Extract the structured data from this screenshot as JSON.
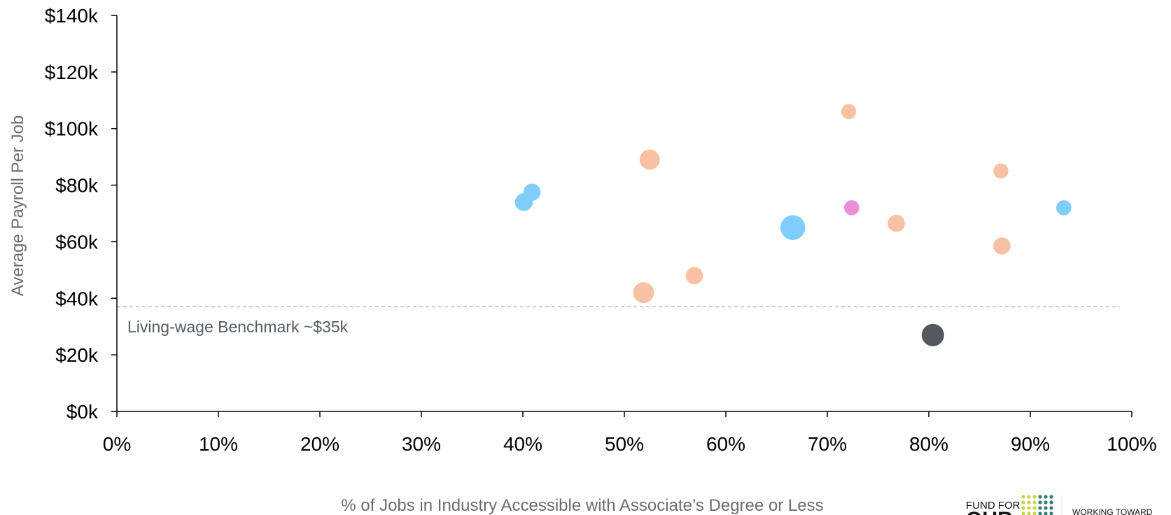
{
  "chart_data": {
    "type": "scatter",
    "subtype": "bubble",
    "xlabel": "% of Jobs in Industry Accessible with Associate’s Degree or Less",
    "ylabel": "Average Payroll Per Job",
    "xlim": [
      0,
      100
    ],
    "ylim": [
      0,
      140
    ],
    "x_ticks": [
      "0%",
      "10%",
      "20%",
      "30%",
      "40%",
      "50%",
      "60%",
      "70%",
      "80%",
      "90%",
      "100%"
    ],
    "y_ticks": [
      "$0k",
      "$20k",
      "$40k",
      "$60k",
      "$80k",
      "$100k",
      "$120k",
      "$140k"
    ],
    "grid": false,
    "benchmark": {
      "value": 37,
      "label": "Living-wage Benchmark ~$35k",
      "color": "#bbbbbb"
    },
    "points": [
      {
        "x": 40.1,
        "y": 74,
        "size": 1.4,
        "color": "#7fcdfb"
      },
      {
        "x": 40.9,
        "y": 77.5,
        "size": 1.3,
        "color": "#7fcdfb"
      },
      {
        "x": 52.5,
        "y": 89,
        "size": 1.8,
        "color": "#f8c1a4"
      },
      {
        "x": 51.9,
        "y": 42,
        "size": 1.9,
        "color": "#f8c1a4"
      },
      {
        "x": 56.9,
        "y": 48,
        "size": 1.3,
        "color": "#f8c1a4"
      },
      {
        "x": 66.6,
        "y": 65,
        "size": 2.7,
        "color": "#7fcdfb"
      },
      {
        "x": 72.1,
        "y": 106,
        "size": 1.0,
        "color": "#f8c1a4"
      },
      {
        "x": 72.4,
        "y": 72,
        "size": 1.0,
        "color": "#e98fd6"
      },
      {
        "x": 76.8,
        "y": 66.5,
        "size": 1.3,
        "color": "#f8c1a4"
      },
      {
        "x": 80.4,
        "y": 27,
        "size": 2.2,
        "color": "#55585c"
      },
      {
        "x": 87.1,
        "y": 85,
        "size": 1.0,
        "color": "#f8c1a4"
      },
      {
        "x": 87.2,
        "y": 58.5,
        "size": 1.3,
        "color": "#f8c1a4"
      },
      {
        "x": 93.3,
        "y": 72,
        "size": 1.0,
        "color": "#7fcdfb"
      }
    ]
  },
  "logo": {
    "line1": "FUND FOR",
    "line2": "OUR",
    "tagline": "WORKING TOWARD"
  },
  "colors": {
    "axis": "#000000",
    "logo_dots_green": "#c8d648",
    "logo_dots_teal": "#2f7f74"
  }
}
